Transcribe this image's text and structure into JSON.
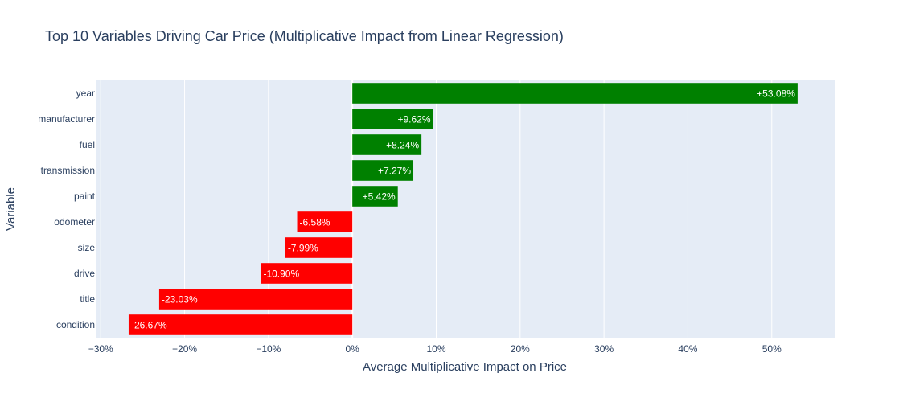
{
  "chart_data": {
    "type": "bar",
    "orientation": "horizontal",
    "title": "Top 10 Variables Driving Car Price (Multiplicative Impact from Linear Regression)",
    "xlabel": "Average Multiplicative Impact on Price",
    "ylabel": "Variable",
    "categories": [
      "year",
      "manufacturer",
      "fuel",
      "transmission",
      "paint",
      "odometer",
      "size",
      "drive",
      "title",
      "condition"
    ],
    "values": [
      53.08,
      9.62,
      8.24,
      7.27,
      5.42,
      -6.58,
      -7.99,
      -10.9,
      -23.03,
      -26.67
    ],
    "value_labels": [
      "+53.08%",
      "+9.62%",
      "+8.24%",
      "+7.27%",
      "+5.42%",
      "-6.58%",
      "-7.99%",
      "-10.90%",
      "-23.03%",
      "-26.67%"
    ],
    "xlim": [
      -30.5,
      57.5
    ],
    "xticks": [
      -30,
      -20,
      -10,
      0,
      10,
      20,
      30,
      40,
      50
    ],
    "xtick_labels": [
      "−30%",
      "−20%",
      "−10%",
      "0%",
      "10%",
      "20%",
      "30%",
      "40%",
      "50%"
    ],
    "colors": {
      "positive": "#008000",
      "negative": "#ff0000",
      "plot_bg": "#e5ecf6",
      "grid": "#ffffff",
      "text": "#2a3f5f"
    },
    "grid": true,
    "legend": "none"
  }
}
